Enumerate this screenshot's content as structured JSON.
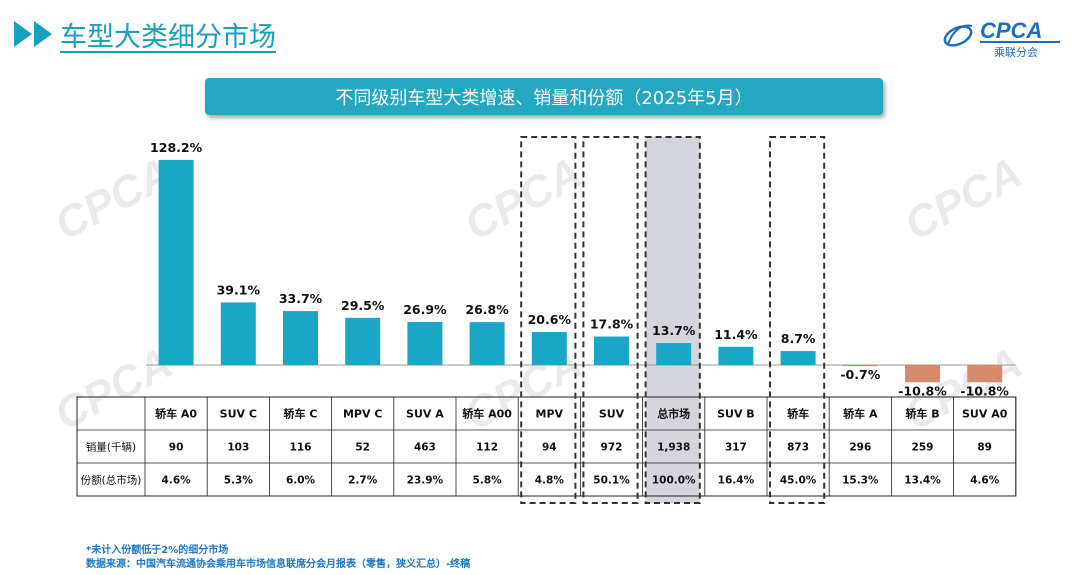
{
  "header": {
    "title": "车型大类细分市场",
    "logo_text": "CPCA",
    "logo_sub": "乘联分会",
    "logo_mark": "CPCA"
  },
  "chart_data": {
    "type": "bar",
    "title": "不同级别车型大类增速、销量和份额（2025年5月）",
    "categories": [
      "轿车 A0",
      "SUV C",
      "轿车 C",
      "MPV C",
      "SUV A",
      "轿车 A00",
      "MPV",
      "SUV",
      "总市场",
      "SUV B",
      "轿车",
      "轿车 A",
      "轿车 B",
      "SUV A0"
    ],
    "series": [
      {
        "values": [
          128.2,
          39.1,
          33.7,
          29.5,
          26.9,
          26.8,
          20.6,
          17.8,
          13.7,
          11.4,
          8.7,
          -0.7,
          -10.8,
          -10.8
        ]
      }
    ],
    "data_labels": [
      "128.2%",
      "39.1%",
      "33.7%",
      "29.5%",
      "26.9%",
      "26.8%",
      "20.6%",
      "17.8%",
      "13.7%",
      "11.4%",
      "8.7%",
      "-0.7%",
      "-10.8%",
      "-10.8%"
    ],
    "table": {
      "row_headers": [
        "销量(千辆)",
        "份额(总市场)"
      ],
      "sales": [
        "90",
        "103",
        "116",
        "52",
        "463",
        "112",
        "94",
        "972",
        "1,938",
        "317",
        "873",
        "296",
        "259",
        "89"
      ],
      "share": [
        "4.6%",
        "5.3%",
        "6.0%",
        "2.7%",
        "23.9%",
        "5.8%",
        "4.8%",
        "50.1%",
        "100.0%",
        "16.4%",
        "45.0%",
        "15.3%",
        "13.4%",
        "4.6%"
      ]
    },
    "highlighted": [
      "MPV",
      "SUV",
      "总市场",
      "轿车"
    ],
    "colors": {
      "positive": "#1aa7c7",
      "negative": "#d98a6c",
      "total_highlight_bg": "#d5d5de",
      "accent": "#17a0be",
      "dashed_box": "#333333"
    }
  },
  "footnotes": {
    "note": "*未计入份额低于2%的细分市场",
    "source": "数据来源：中国汽车流通协会乘用车市场信息联席分会月报表（零售，狭义汇总）-终稿"
  }
}
